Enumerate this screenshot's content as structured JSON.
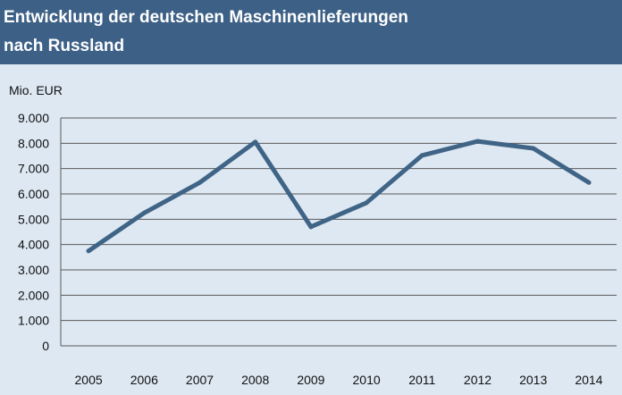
{
  "header": {
    "title_line1": "Entwicklung der deutschen Maschinenlieferungen",
    "title_line2": "nach Russland"
  },
  "colors": {
    "header_bg": "#3d6086",
    "plot_bg": "#dde8f3",
    "line": "#3f6486",
    "grid": "#5a5a5a"
  },
  "chart_data": {
    "type": "line",
    "title": "Entwicklung der deutschen Maschinenlieferungen nach Russland",
    "ylabel": "Mio. EUR",
    "xlabel": "",
    "categories": [
      "2005",
      "2006",
      "2007",
      "2008",
      "2009",
      "2010",
      "2011",
      "2012",
      "2013",
      "2014"
    ],
    "series": [
      {
        "values": [
          3750,
          5250,
          6450,
          8050,
          4700,
          5650,
          7520,
          8080,
          7800,
          6450
        ]
      }
    ],
    "ylim": [
      0,
      9000
    ],
    "yticks": [
      0,
      1000,
      2000,
      3000,
      4000,
      5000,
      6000,
      7000,
      8000,
      9000
    ],
    "ytick_labels": [
      "0",
      "1.000",
      "2.000",
      "3.000",
      "4.000",
      "5.000",
      "6.000",
      "7.000",
      "8.000",
      "9.000"
    ],
    "grid": true,
    "legend": "none"
  }
}
